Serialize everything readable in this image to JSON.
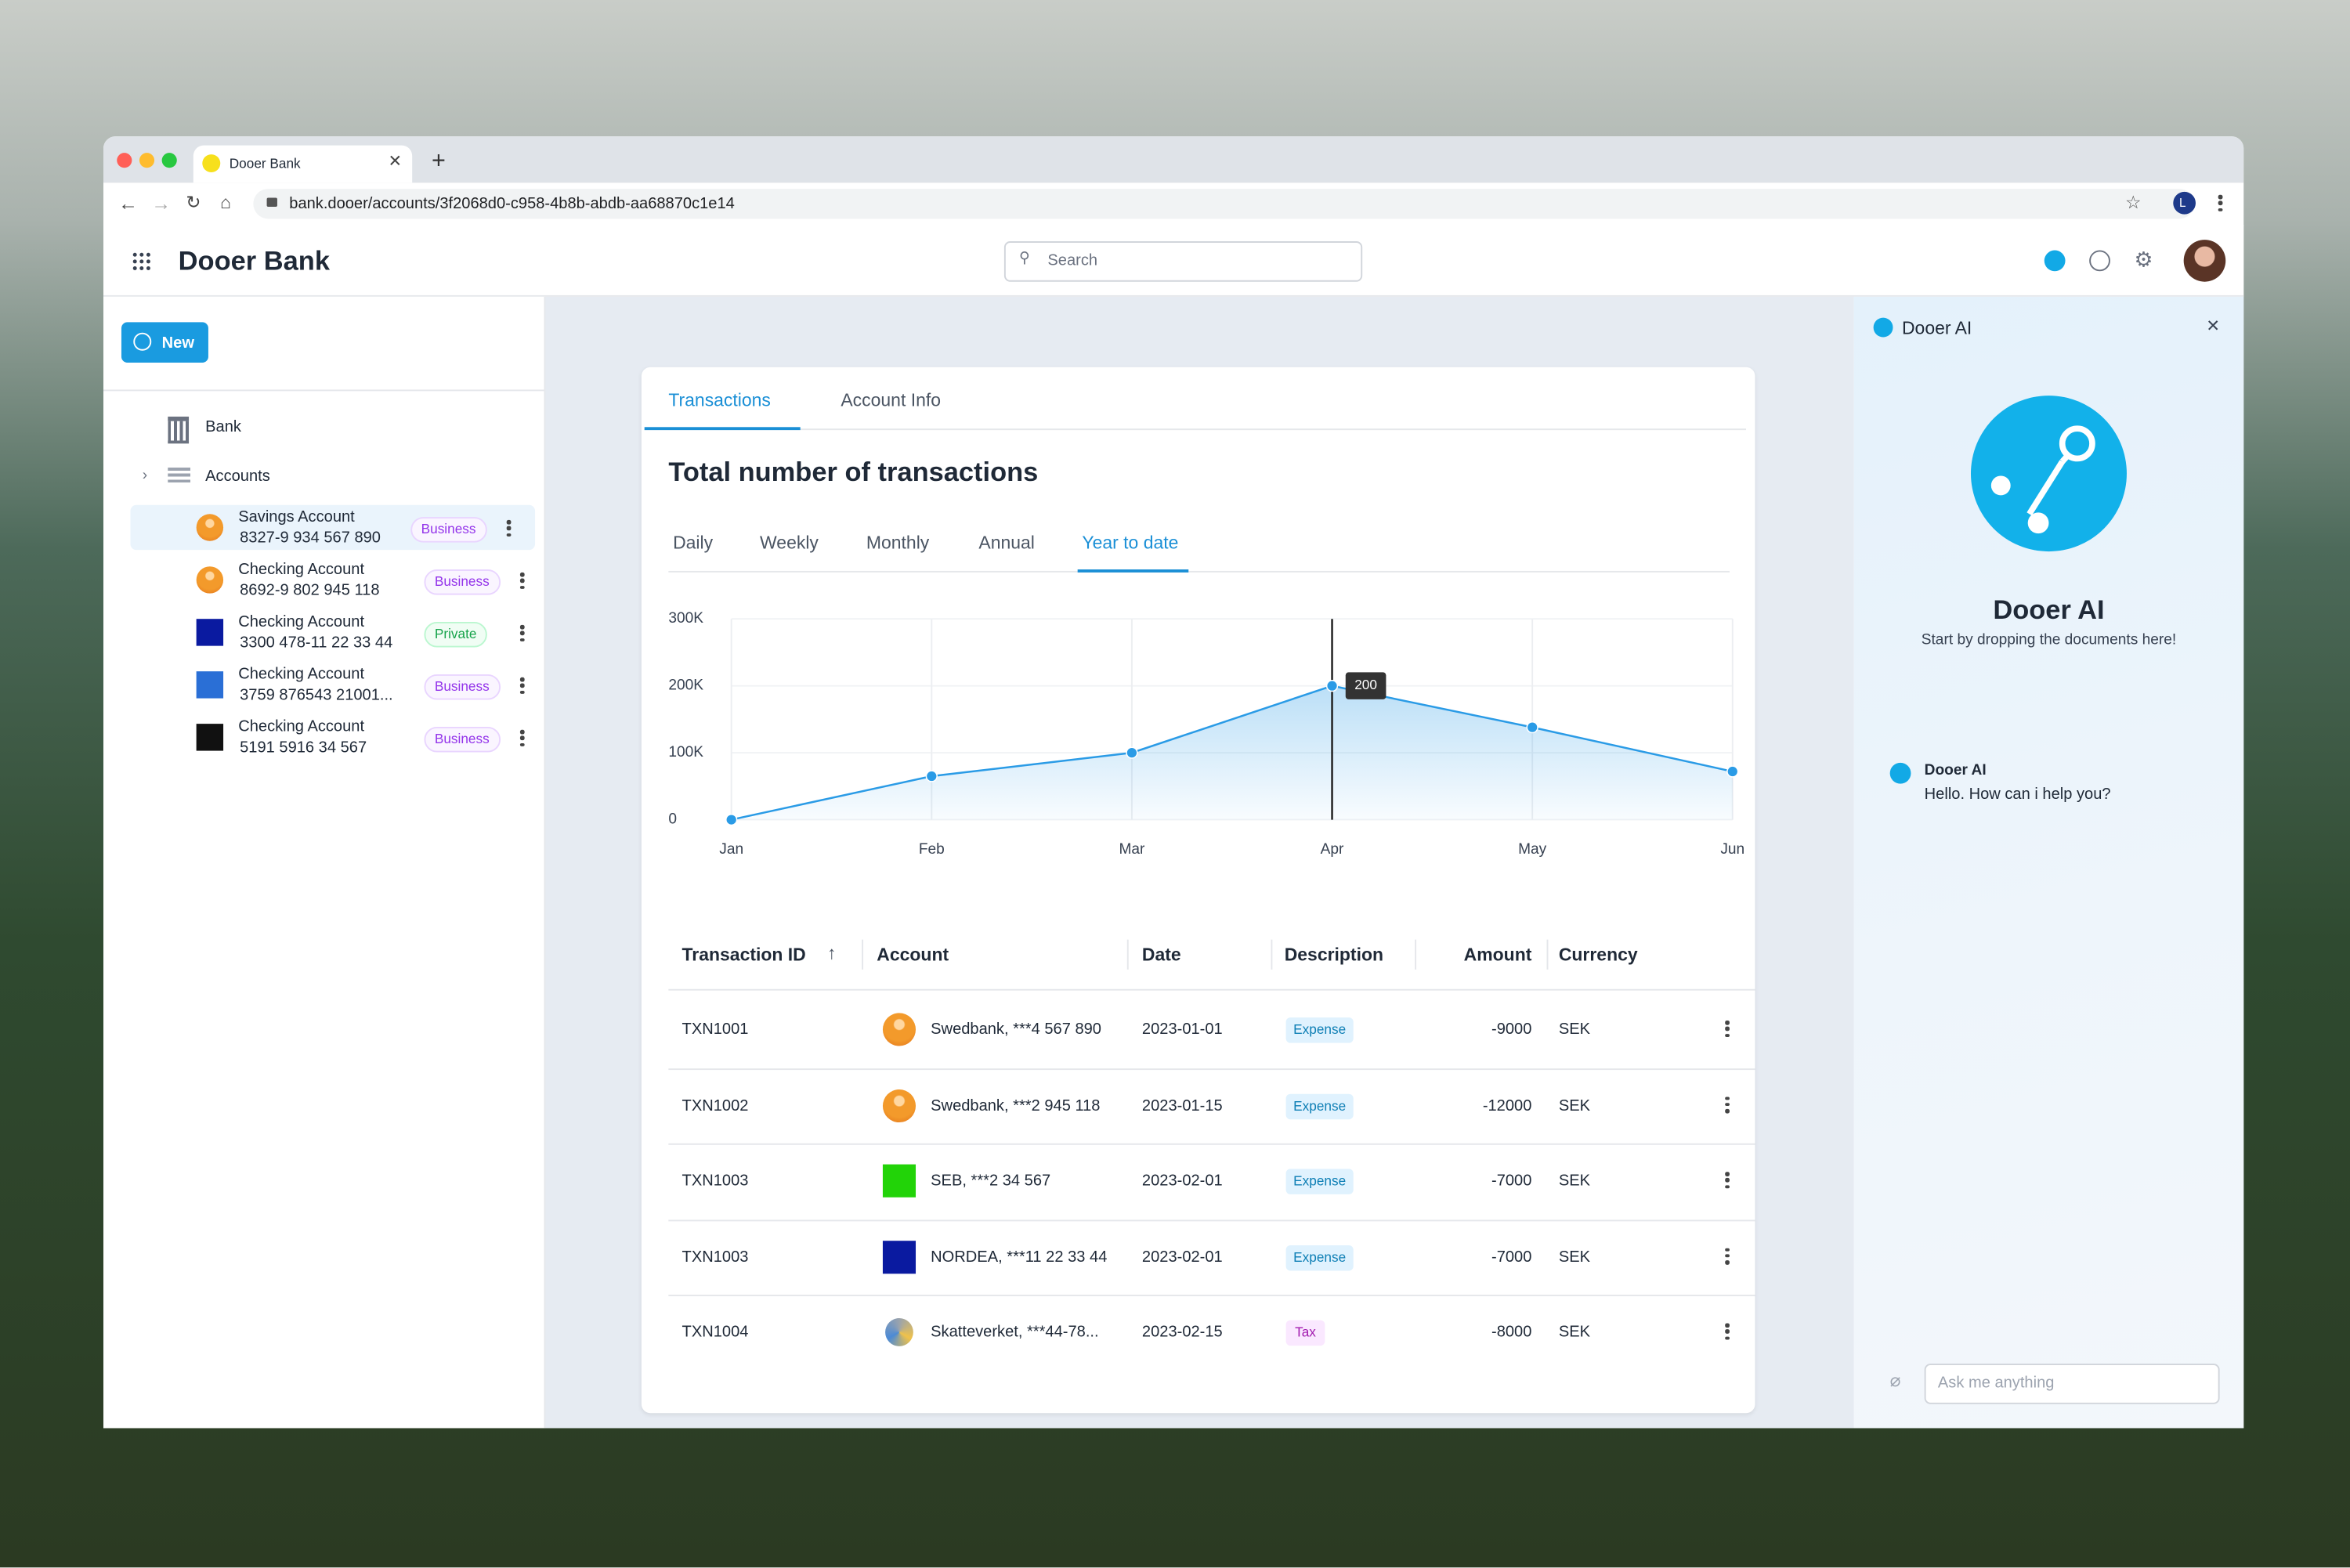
{
  "browser": {
    "tab_title": "Dooer Bank",
    "url": "bank.dooer/accounts/3f2068d0-c958-4b8b-abdb-aa68870c1e14",
    "profile_initial": "L"
  },
  "header": {
    "app_name": "Dooer Bank",
    "search_placeholder": "Search"
  },
  "sidebar": {
    "new_button": "New",
    "nav": [
      "Bank",
      "Accounts"
    ],
    "accounts": [
      {
        "name": "Savings Account",
        "number": "8327-9 934 567 890",
        "tag": "Business"
      },
      {
        "name": "Checking Account",
        "number": "8692-9 802 945 118",
        "tag": "Business"
      },
      {
        "name": "Checking Account",
        "number": "3300 478-11 22 33 44",
        "tag": "Private"
      },
      {
        "name": "Checking Account",
        "number": "3759 876543 21001...",
        "tag": "Business"
      },
      {
        "name": "Checking Account",
        "number": "5191 5916 34 567",
        "tag": "Business"
      }
    ]
  },
  "tabs": [
    "Transactions",
    "Account Info"
  ],
  "period_tabs": [
    "Daily",
    "Weekly",
    "Monthly",
    "Annual",
    "Year to date"
  ],
  "chart_data": {
    "type": "line",
    "title": "Total number of transactions",
    "categories": [
      "Jan",
      "Feb",
      "Mar",
      "Apr",
      "May",
      "Jun"
    ],
    "values": [
      0,
      65,
      100,
      200,
      138,
      72
    ],
    "value_labels": [
      null,
      null,
      null,
      "200",
      null,
      null
    ],
    "color": "#2a9be6",
    "ylim": [
      0,
      300
    ],
    "yticks": [
      0,
      {
        "value": 100,
        "label": "100K"
      },
      {
        "value": 200,
        "label": "200K"
      },
      {
        "value": 300,
        "label": "300K"
      }
    ],
    "grid": true
  },
  "table": {
    "columns": [
      "Transaction ID",
      "Account",
      "Date",
      "Description",
      "Amount",
      "Currency"
    ],
    "rows": [
      [
        "TXN1001",
        "Swedbank, ***4 567 890",
        "2023-01-01",
        "Expense",
        -9000,
        "SEK"
      ],
      [
        "TXN1002",
        "Swedbank, ***2 945 118",
        "2023-01-15",
        "Expense",
        -12000,
        "SEK"
      ],
      [
        "TXN1003",
        "SEB, ***2 34 567",
        "2023-02-01",
        "Expense",
        -7000,
        "SEK"
      ],
      [
        "TXN1003",
        "NORDEA, ***11 22 33 44",
        "2023-02-01",
        "Expense",
        -7000,
        "SEK"
      ],
      [
        "TXN1004",
        "Skatteverket, ***44-78...",
        "2023-02-15",
        "Tax",
        -8000,
        "SEK"
      ]
    ]
  },
  "ai": {
    "title": "Dooer AI",
    "heading": "Dooer AI",
    "subtitle": "Start by dropping the documents here!",
    "messages": [
      {
        "sender": "Dooer AI",
        "text": "Hello. How can i help you?"
      }
    ],
    "input_placeholder": "Ask me anything"
  }
}
